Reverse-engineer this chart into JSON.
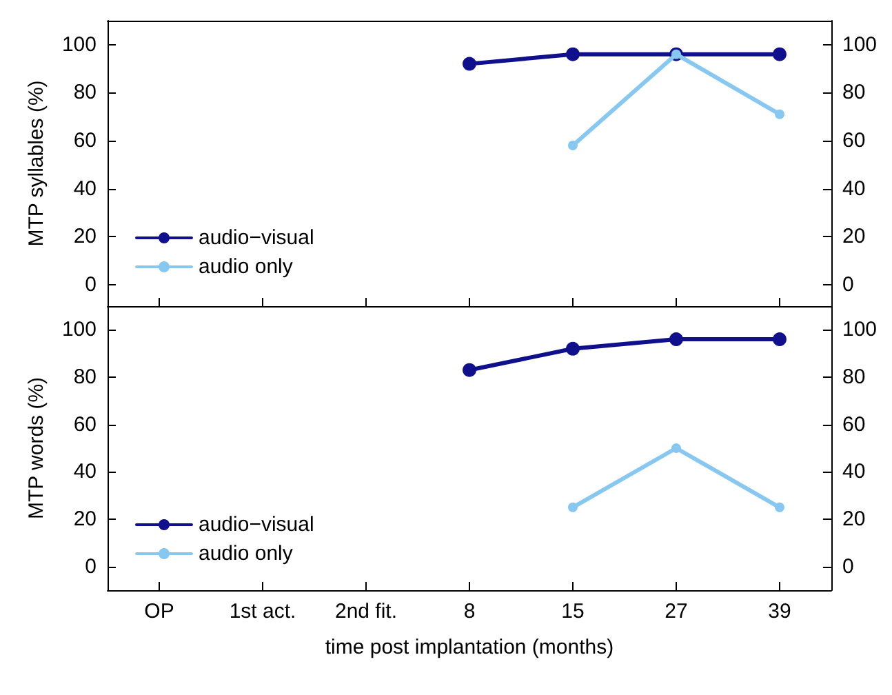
{
  "chart_data": [
    {
      "type": "line",
      "ylabel": "MTP syllables (%)",
      "categories": [
        null,
        null,
        null,
        null,
        null,
        null,
        null
      ],
      "ylim": [
        -9,
        110
      ],
      "yticks": [
        0,
        20,
        40,
        60,
        80,
        100
      ],
      "y2lim": [
        -9,
        110
      ],
      "y2ticks": [
        0,
        20,
        40,
        60,
        80,
        100
      ],
      "tick_labels": "y",
      "grid": false,
      "legend": "bottom left",
      "marker": "circle",
      "line_style": "solid",
      "series": [
        {
          "name": "audio−visual",
          "color": "#10108c",
          "values": [
            null,
            null,
            null,
            92,
            96,
            96,
            96
          ]
        },
        {
          "name": "audio only",
          "color": "#88c8f0",
          "values": [
            null,
            null,
            null,
            null,
            58,
            96,
            71
          ]
        }
      ]
    },
    {
      "type": "line",
      "ylabel": "MTP words (%)",
      "xlabel": "time post implantation (months)",
      "categories": [
        "OP",
        "1st act.",
        "2nd fit.",
        "8",
        "15",
        "27",
        "39"
      ],
      "ylim": [
        -10,
        110
      ],
      "yticks": [
        0,
        20,
        40,
        60,
        80,
        100
      ],
      "y2lim": [
        -10,
        110
      ],
      "y2ticks": [
        0,
        20,
        40,
        60,
        80,
        100
      ],
      "grid": false,
      "legend": "bottom left",
      "marker": "circle",
      "line_style": "solid",
      "series": [
        {
          "name": "audio−visual",
          "color": "#10108c",
          "values": [
            null,
            null,
            null,
            83,
            92,
            96,
            96
          ]
        },
        {
          "name": "audio only",
          "color": "#88c8f0",
          "values": [
            null,
            null,
            null,
            null,
            25,
            50,
            25
          ]
        }
      ]
    }
  ]
}
